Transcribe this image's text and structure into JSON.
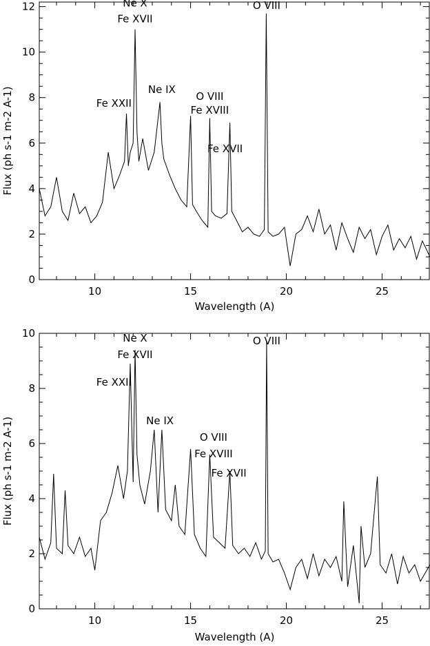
{
  "chart_data": [
    {
      "type": "line",
      "title": "",
      "xlabel": "Wavelength (A)",
      "ylabel": "Flux (ph s-1 m-2 A-1)",
      "xlim": [
        7.1,
        27.5
      ],
      "ylim": [
        0,
        12.2
      ],
      "xticks": [
        10,
        15,
        20,
        25
      ],
      "yticks": [
        0,
        2,
        4,
        6,
        8,
        10,
        12
      ],
      "xminor": 1,
      "yminor": 0.5,
      "grid": false,
      "series": [
        {
          "x": [
            7.1,
            7.4,
            7.7,
            8.0,
            8.3,
            8.6,
            8.9,
            9.2,
            9.5,
            9.8,
            10.1,
            10.4,
            10.7,
            11.0,
            11.3,
            11.55,
            11.65,
            11.75,
            11.85,
            12.0,
            12.1,
            12.2,
            12.3,
            12.5,
            12.8,
            13.1,
            13.4,
            13.5,
            13.6,
            13.9,
            14.2,
            14.5,
            14.8,
            15.0,
            15.1,
            15.3,
            15.6,
            15.9,
            16.0,
            16.1,
            16.3,
            16.6,
            16.9,
            17.05,
            17.15,
            17.4,
            17.7,
            18.0,
            18.3,
            18.6,
            18.85,
            18.95,
            19.05,
            19.3,
            19.6,
            19.9,
            20.2,
            20.5,
            20.8,
            21.1,
            21.4,
            21.7,
            22.0,
            22.3,
            22.6,
            22.9,
            23.2,
            23.5,
            23.8,
            24.1,
            24.4,
            24.7,
            25.0,
            25.3,
            25.6,
            25.9,
            26.2,
            26.5,
            26.8,
            27.1,
            27.5
          ],
          "y": [
            4.0,
            2.8,
            3.2,
            4.5,
            3.0,
            2.6,
            3.8,
            2.9,
            3.2,
            2.5,
            2.8,
            3.4,
            5.6,
            4.0,
            4.6,
            5.2,
            7.3,
            5.0,
            5.6,
            6.0,
            11.0,
            6.5,
            5.2,
            6.2,
            4.8,
            5.6,
            7.8,
            6.0,
            5.3,
            4.6,
            4.0,
            3.5,
            3.2,
            7.2,
            3.3,
            3.0,
            2.6,
            2.3,
            7.1,
            3.0,
            2.8,
            2.7,
            2.9,
            6.9,
            3.0,
            2.6,
            2.1,
            2.3,
            2.0,
            1.9,
            2.2,
            11.7,
            2.1,
            1.9,
            2.0,
            2.3,
            0.6,
            2.0,
            2.2,
            2.8,
            2.1,
            3.1,
            2.0,
            2.4,
            1.3,
            2.5,
            1.8,
            1.2,
            2.3,
            1.8,
            2.2,
            1.1,
            1.9,
            2.4,
            1.3,
            1.8,
            1.4,
            1.9,
            0.9,
            1.7,
            1.0
          ]
        }
      ],
      "annotations": [
        {
          "text": "Ne X",
          "x": 12.1,
          "y": 12.0
        },
        {
          "text": "Fe XVII",
          "x": 12.1,
          "y": 11.3
        },
        {
          "text": "Fe XXII",
          "x": 11.0,
          "y": 7.6
        },
        {
          "text": "Ne IX",
          "x": 13.5,
          "y": 8.2
        },
        {
          "text": "O VIII",
          "x": 16.0,
          "y": 7.9
        },
        {
          "text": "Fe XVIII",
          "x": 16.0,
          "y": 7.3
        },
        {
          "text": "Fe XVII",
          "x": 16.8,
          "y": 5.6
        },
        {
          "text": "O VIII",
          "x": 18.97,
          "y": 11.9
        }
      ]
    },
    {
      "type": "line",
      "title": "",
      "xlabel": "Wavelength (A)",
      "ylabel": "Flux (ph s-1 m-2 A-1)",
      "xlim": [
        7.1,
        27.5
      ],
      "ylim": [
        0,
        10.0
      ],
      "xticks": [
        10,
        15,
        20,
        25
      ],
      "yticks": [
        0,
        2,
        4,
        6,
        8,
        10
      ],
      "xminor": 1,
      "yminor": 0.5,
      "grid": false,
      "series": [
        {
          "x": [
            7.1,
            7.4,
            7.7,
            7.85,
            8.0,
            8.3,
            8.45,
            8.6,
            8.9,
            9.2,
            9.5,
            9.8,
            10.0,
            10.3,
            10.6,
            10.9,
            11.2,
            11.5,
            11.7,
            11.85,
            12.0,
            12.1,
            12.2,
            12.35,
            12.6,
            12.9,
            13.1,
            13.3,
            13.5,
            13.7,
            14.0,
            14.2,
            14.4,
            14.7,
            15.0,
            15.2,
            15.5,
            15.8,
            16.0,
            16.2,
            16.5,
            16.8,
            17.05,
            17.2,
            17.5,
            17.8,
            18.1,
            18.4,
            18.7,
            18.9,
            18.97,
            19.05,
            19.3,
            19.6,
            19.9,
            20.2,
            20.5,
            20.8,
            21.1,
            21.4,
            21.7,
            22.0,
            22.3,
            22.6,
            22.9,
            23.0,
            23.2,
            23.5,
            23.8,
            23.9,
            24.1,
            24.4,
            24.75,
            24.9,
            25.2,
            25.5,
            25.8,
            26.1,
            26.4,
            26.7,
            27.0,
            27.5
          ],
          "y": [
            2.6,
            1.8,
            2.4,
            4.9,
            2.2,
            2.0,
            4.3,
            2.3,
            2.0,
            2.6,
            1.9,
            2.2,
            1.4,
            3.2,
            3.5,
            4.2,
            5.2,
            4.0,
            5.0,
            8.9,
            4.6,
            9.4,
            5.6,
            4.5,
            3.8,
            5.0,
            6.5,
            3.5,
            6.5,
            3.6,
            3.2,
            4.5,
            3.0,
            2.7,
            5.8,
            2.7,
            2.2,
            1.9,
            5.6,
            2.6,
            2.4,
            2.2,
            5.0,
            2.3,
            2.0,
            2.2,
            1.9,
            2.4,
            1.8,
            2.1,
            9.7,
            2.0,
            1.7,
            1.8,
            1.3,
            0.7,
            1.5,
            1.8,
            1.1,
            2.0,
            1.2,
            1.8,
            1.5,
            1.9,
            1.0,
            3.9,
            0.8,
            2.3,
            0.2,
            3.0,
            1.5,
            2.0,
            4.8,
            1.6,
            1.3,
            2.0,
            0.9,
            1.9,
            1.3,
            1.6,
            1.0,
            1.6
          ]
        }
      ],
      "annotations": [
        {
          "text": "Ne X",
          "x": 12.1,
          "y": 9.7
        },
        {
          "text": "Fe XVII",
          "x": 12.1,
          "y": 9.1
        },
        {
          "text": "Fe XXII",
          "x": 11.0,
          "y": 8.1
        },
        {
          "text": "Ne IX",
          "x": 13.4,
          "y": 6.7
        },
        {
          "text": "O VIII",
          "x": 16.2,
          "y": 6.1
        },
        {
          "text": "Fe XVIII",
          "x": 16.2,
          "y": 5.5
        },
        {
          "text": "Fe XVII",
          "x": 17.0,
          "y": 4.8
        },
        {
          "text": "O VIII",
          "x": 18.97,
          "y": 9.6
        }
      ]
    }
  ]
}
